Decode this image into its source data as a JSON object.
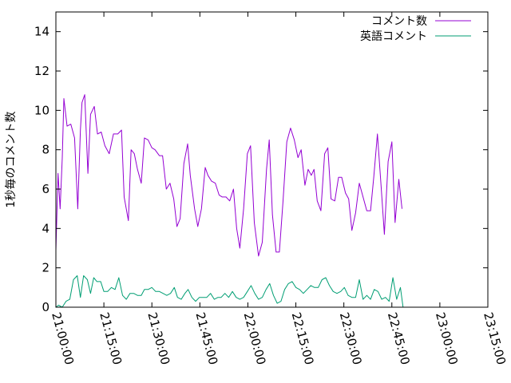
{
  "chart_data": {
    "type": "line",
    "title": "",
    "xlabel": "",
    "ylabel": "1秒毎のコメント数",
    "ylim": [
      0,
      15
    ],
    "yticks": [
      "0",
      "2",
      "4",
      "6",
      "8",
      "10",
      "12",
      "14"
    ],
    "xticks": [
      "21:00:00",
      "21:15:00",
      "21:30:00",
      "21:45:00",
      "22:00:00",
      "22:15:00",
      "22:30:00",
      "22:45:00",
      "23:00:00",
      "23:15:00"
    ],
    "xrange": [
      "21:00:00",
      "23:15:00"
    ],
    "grid": false,
    "legend_position": "top-right",
    "series": [
      {
        "name": "コメント数",
        "color": "#9400d3",
        "points": [
          [
            "21:00:00",
            2.9
          ],
          [
            "21:00:40",
            6.8
          ],
          [
            "21:01:20",
            5.0
          ],
          [
            "21:02:00",
            7.6
          ],
          [
            "21:02:30",
            10.6
          ],
          [
            "21:03:30",
            9.2
          ],
          [
            "21:04:40",
            9.3
          ],
          [
            "21:05:50",
            8.6
          ],
          [
            "21:06:50",
            5.0
          ],
          [
            "21:07:40",
            9.0
          ],
          [
            "21:08:10",
            10.4
          ],
          [
            "21:09:00",
            10.8
          ],
          [
            "21:10:00",
            6.8
          ],
          [
            "21:10:50",
            9.8
          ],
          [
            "21:12:00",
            10.2
          ],
          [
            "21:13:00",
            8.8
          ],
          [
            "21:14:10",
            8.9
          ],
          [
            "21:15:20",
            8.2
          ],
          [
            "21:16:40",
            7.8
          ],
          [
            "21:18:00",
            8.8
          ],
          [
            "21:19:20",
            8.8
          ],
          [
            "21:20:30",
            9.0
          ],
          [
            "21:21:20",
            5.6
          ],
          [
            "21:22:40",
            4.4
          ],
          [
            "21:23:30",
            8.0
          ],
          [
            "21:24:30",
            7.8
          ],
          [
            "21:25:30",
            7.0
          ],
          [
            "21:26:40",
            6.3
          ],
          [
            "21:27:40",
            8.6
          ],
          [
            "21:28:50",
            8.5
          ],
          [
            "21:30:00",
            8.1
          ],
          [
            "21:31:00",
            8.0
          ],
          [
            "21:32:20",
            7.7
          ],
          [
            "21:33:20",
            7.7
          ],
          [
            "21:34:30",
            6.0
          ],
          [
            "21:35:40",
            6.3
          ],
          [
            "21:36:50",
            5.5
          ],
          [
            "21:37:50",
            4.1
          ],
          [
            "21:38:50",
            4.5
          ],
          [
            "21:40:00",
            7.3
          ],
          [
            "21:41:10",
            8.3
          ],
          [
            "21:42:00",
            6.7
          ],
          [
            "21:43:20",
            5.0
          ],
          [
            "21:44:20",
            4.1
          ],
          [
            "21:45:30",
            5.0
          ],
          [
            "21:46:40",
            7.1
          ],
          [
            "21:47:30",
            6.7
          ],
          [
            "21:48:40",
            6.4
          ],
          [
            "21:49:50",
            6.3
          ],
          [
            "21:51:00",
            5.7
          ],
          [
            "21:52:00",
            5.6
          ],
          [
            "21:53:10",
            5.6
          ],
          [
            "21:54:20",
            5.4
          ],
          [
            "21:55:30",
            6.0
          ],
          [
            "21:56:30",
            4.0
          ],
          [
            "21:57:30",
            3.0
          ],
          [
            "21:58:40",
            5.0
          ],
          [
            "21:59:50",
            7.8
          ],
          [
            "22:00:50",
            8.2
          ],
          [
            "22:02:00",
            4.3
          ],
          [
            "22:03:20",
            2.6
          ],
          [
            "22:04:30",
            3.3
          ],
          [
            "22:05:50",
            7.0
          ],
          [
            "22:06:40",
            8.5
          ],
          [
            "22:07:40",
            4.7
          ],
          [
            "22:08:50",
            2.8
          ],
          [
            "22:09:50",
            2.8
          ],
          [
            "22:11:00",
            5.4
          ],
          [
            "22:12:10",
            8.4
          ],
          [
            "22:13:20",
            9.1
          ],
          [
            "22:14:30",
            8.5
          ],
          [
            "22:15:40",
            7.6
          ],
          [
            "22:16:40",
            8.0
          ],
          [
            "22:17:50",
            6.2
          ],
          [
            "22:18:50",
            7.0
          ],
          [
            "22:19:50",
            6.7
          ],
          [
            "22:20:40",
            7.0
          ],
          [
            "22:21:40",
            5.4
          ],
          [
            "22:22:50",
            4.9
          ],
          [
            "22:24:00",
            7.8
          ],
          [
            "22:25:00",
            8.1
          ],
          [
            "22:26:00",
            5.5
          ],
          [
            "22:27:10",
            5.4
          ],
          [
            "22:28:20",
            6.6
          ],
          [
            "22:29:20",
            6.6
          ],
          [
            "22:30:30",
            5.8
          ],
          [
            "22:31:30",
            5.5
          ],
          [
            "22:32:30",
            3.9
          ],
          [
            "22:33:40",
            4.8
          ],
          [
            "22:34:50",
            6.3
          ],
          [
            "22:36:00",
            5.6
          ],
          [
            "22:37:10",
            4.9
          ],
          [
            "22:38:20",
            4.9
          ],
          [
            "22:39:20",
            6.6
          ],
          [
            "22:40:30",
            8.8
          ],
          [
            "22:41:40",
            6.1
          ],
          [
            "22:42:40",
            3.7
          ],
          [
            "22:43:50",
            7.4
          ],
          [
            "22:45:00",
            8.4
          ],
          [
            "22:46:00",
            4.3
          ],
          [
            "22:47:10",
            6.5
          ],
          [
            "22:48:10",
            5.0
          ]
        ]
      },
      {
        "name": "英語コメント",
        "color": "#009e73",
        "points": [
          [
            "21:00:00",
            0.0
          ],
          [
            "21:00:50",
            0.1
          ],
          [
            "21:02:00",
            0.0
          ],
          [
            "21:03:10",
            0.3
          ],
          [
            "21:04:20",
            0.4
          ],
          [
            "21:05:30",
            1.4
          ],
          [
            "21:06:40",
            1.6
          ],
          [
            "21:07:40",
            0.5
          ],
          [
            "21:08:40",
            1.6
          ],
          [
            "21:09:50",
            1.4
          ],
          [
            "21:10:50",
            0.7
          ],
          [
            "21:11:50",
            1.5
          ],
          [
            "21:12:50",
            1.3
          ],
          [
            "21:14:00",
            1.3
          ],
          [
            "21:15:00",
            0.8
          ],
          [
            "21:16:10",
            0.8
          ],
          [
            "21:17:20",
            1.0
          ],
          [
            "21:18:30",
            0.9
          ],
          [
            "21:19:40",
            1.5
          ],
          [
            "21:20:50",
            0.6
          ],
          [
            "21:22:00",
            0.4
          ],
          [
            "21:23:10",
            0.7
          ],
          [
            "21:24:20",
            0.7
          ],
          [
            "21:25:30",
            0.6
          ],
          [
            "21:26:40",
            0.6
          ],
          [
            "21:27:40",
            0.9
          ],
          [
            "21:28:50",
            0.9
          ],
          [
            "21:30:00",
            1.0
          ],
          [
            "21:31:10",
            0.8
          ],
          [
            "21:32:20",
            0.8
          ],
          [
            "21:33:30",
            0.7
          ],
          [
            "21:34:40",
            0.6
          ],
          [
            "21:35:50",
            0.7
          ],
          [
            "21:37:00",
            1.0
          ],
          [
            "21:38:00",
            0.5
          ],
          [
            "21:39:10",
            0.4
          ],
          [
            "21:40:20",
            0.7
          ],
          [
            "21:41:20",
            0.9
          ],
          [
            "21:42:30",
            0.5
          ],
          [
            "21:43:40",
            0.3
          ],
          [
            "21:44:50",
            0.5
          ],
          [
            "21:46:00",
            0.5
          ],
          [
            "21:47:10",
            0.5
          ],
          [
            "21:48:20",
            0.7
          ],
          [
            "21:49:30",
            0.4
          ],
          [
            "21:50:40",
            0.5
          ],
          [
            "21:51:40",
            0.5
          ],
          [
            "21:52:50",
            0.7
          ],
          [
            "21:54:00",
            0.5
          ],
          [
            "21:55:10",
            0.8
          ],
          [
            "21:56:20",
            0.5
          ],
          [
            "21:57:30",
            0.4
          ],
          [
            "21:58:40",
            0.5
          ],
          [
            "21:59:50",
            0.8
          ],
          [
            "22:01:00",
            1.1
          ],
          [
            "22:02:10",
            0.7
          ],
          [
            "22:03:20",
            0.4
          ],
          [
            "22:04:30",
            0.5
          ],
          [
            "22:05:40",
            0.9
          ],
          [
            "22:06:50",
            1.2
          ],
          [
            "22:08:00",
            0.6
          ],
          [
            "22:09:10",
            0.2
          ],
          [
            "22:10:20",
            0.3
          ],
          [
            "22:11:30",
            0.9
          ],
          [
            "22:12:40",
            1.2
          ],
          [
            "22:13:50",
            1.3
          ],
          [
            "22:15:00",
            1.0
          ],
          [
            "22:16:10",
            0.9
          ],
          [
            "22:17:20",
            0.7
          ],
          [
            "22:18:30",
            0.9
          ],
          [
            "22:19:40",
            1.1
          ],
          [
            "22:20:50",
            1.0
          ],
          [
            "22:22:00",
            1.0
          ],
          [
            "22:23:10",
            1.4
          ],
          [
            "22:24:20",
            1.5
          ],
          [
            "22:25:30",
            1.1
          ],
          [
            "22:26:40",
            0.8
          ],
          [
            "22:27:50",
            0.7
          ],
          [
            "22:29:00",
            0.8
          ],
          [
            "22:30:10",
            1.0
          ],
          [
            "22:31:20",
            0.6
          ],
          [
            "22:32:30",
            0.5
          ],
          [
            "22:33:40",
            0.5
          ],
          [
            "22:34:50",
            1.4
          ],
          [
            "22:36:00",
            0.4
          ],
          [
            "22:37:10",
            0.6
          ],
          [
            "22:38:20",
            0.4
          ],
          [
            "22:39:30",
            0.9
          ],
          [
            "22:40:40",
            0.8
          ],
          [
            "22:41:50",
            0.4
          ],
          [
            "22:43:00",
            0.5
          ],
          [
            "22:44:10",
            0.3
          ],
          [
            "22:45:20",
            1.5
          ],
          [
            "22:46:30",
            0.4
          ],
          [
            "22:47:40",
            1.0
          ],
          [
            "22:48:30",
            0.0
          ]
        ]
      }
    ]
  }
}
